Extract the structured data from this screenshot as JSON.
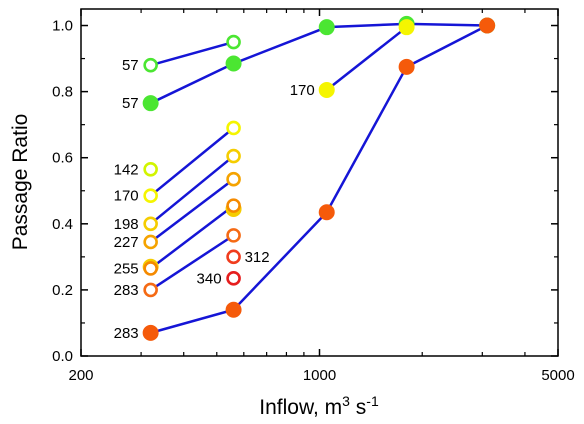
{
  "chart_data": {
    "type": "scatter",
    "xlabel": "Inflow, m",
    "xlabel_sup": "3",
    "xlabel_unit": " s",
    "xlabel_unit_sup": "-1",
    "ylabel": "Passage Ratio",
    "x_scale": "log",
    "xlim": [
      200,
      5000
    ],
    "ylim": [
      0,
      1.05
    ],
    "x_ticks": [
      200,
      1000,
      5000
    ],
    "x_tick_labels": [
      "200",
      "1000",
      "5000"
    ],
    "y_ticks": [
      0,
      0.2,
      0.4,
      0.6,
      0.8,
      1.0
    ],
    "y_tick_labels": [
      "0.0",
      "0.2",
      "0.4",
      "0.6",
      "0.8",
      "1.0"
    ],
    "grid": false,
    "line_color": "#1515d6",
    "series": [
      {
        "label": "57",
        "label_side": "left",
        "filled": false,
        "color": "#4be632",
        "x": [
          320,
          560
        ],
        "y": [
          0.88,
          0.95
        ]
      },
      {
        "label": "57",
        "label_side": "left",
        "filled": true,
        "color": "#4be632",
        "x": [
          320,
          560,
          1050,
          1800,
          3100
        ],
        "y": [
          0.765,
          0.885,
          0.995,
          1.005,
          1.0
        ]
      },
      {
        "label": "170",
        "label_side": "left",
        "filled": true,
        "color": "#f5f500",
        "x": [
          1050,
          1800
        ],
        "y": [
          0.805,
          0.995
        ]
      },
      {
        "label": "142",
        "label_side": "left",
        "filled": false,
        "color": "#d2f500",
        "x": [
          320
        ],
        "y": [
          0.565
        ]
      },
      {
        "label": "170",
        "label_side": "left",
        "filled": false,
        "color": "#f5f500",
        "x": [
          320,
          560
        ],
        "y": [
          0.485,
          0.69
        ]
      },
      {
        "label": "198",
        "label_side": "left",
        "filled": false,
        "color": "#f5cd00",
        "x": [
          320,
          560
        ],
        "y": [
          0.4,
          0.605
        ]
      },
      {
        "label": "227",
        "label_side": "left",
        "filled": false,
        "color": "#f5a300",
        "x": [
          320,
          560
        ],
        "y": [
          0.345,
          0.535
        ]
      },
      {
        "label": "255",
        "label_side": "left",
        "filled": false,
        "color": "#f58a00",
        "x": [
          320,
          560
        ],
        "y": [
          0.265,
          0.455
        ]
      },
      {
        "label": "283",
        "label_side": "left",
        "filled": false,
        "color": "#f56a14",
        "x": [
          320,
          560
        ],
        "y": [
          0.2,
          0.365
        ]
      },
      {
        "label": "312",
        "label_side": "right",
        "filled": false,
        "color": "#f03c1e",
        "x": [
          560
        ],
        "y": [
          0.3
        ]
      },
      {
        "label": "340",
        "label_side": "left",
        "filled": false,
        "color": "#e61e1e",
        "x": [
          560
        ],
        "y": [
          0.235
        ]
      },
      {
        "label": "283",
        "label_side": "left",
        "filled": true,
        "color": "#f55a0a",
        "x": [
          320,
          560,
          1050,
          1800,
          3100
        ],
        "y": [
          0.07,
          0.14,
          0.435,
          0.875,
          1.0
        ]
      }
    ],
    "extra_markers": [
      {
        "filled": true,
        "color": "#f5cd00",
        "x": 320,
        "y": 0.27
      },
      {
        "filled": true,
        "color": "#f5cd00",
        "x": 560,
        "y": 0.445
      }
    ]
  }
}
